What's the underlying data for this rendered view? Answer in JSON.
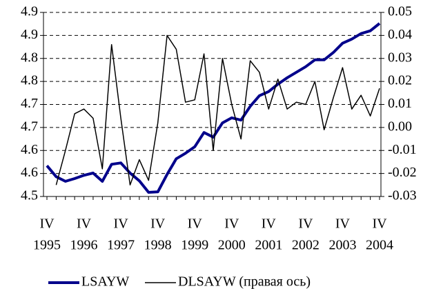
{
  "chart_data": {
    "type": "line",
    "categories": [
      [
        "IV",
        "1995"
      ],
      null,
      null,
      null,
      [
        "IV",
        "1996"
      ],
      null,
      null,
      null,
      [
        "IV",
        "1997"
      ],
      null,
      null,
      null,
      [
        "IV",
        "1998"
      ],
      null,
      null,
      null,
      [
        "IV",
        "1999"
      ],
      null,
      null,
      null,
      [
        "IV",
        "2000"
      ],
      null,
      null,
      null,
      [
        "IV",
        "2001"
      ],
      null,
      null,
      null,
      [
        "IV",
        "2002"
      ],
      null,
      null,
      null,
      [
        "IV",
        "2003"
      ],
      null,
      null,
      null,
      [
        "IV",
        "2004"
      ]
    ],
    "series": [
      {
        "name": "LSAYW",
        "color": "#00008b",
        "values": [
          4.567,
          4.543,
          4.533,
          4.539,
          4.546,
          4.551,
          4.533,
          4.57,
          4.573,
          4.551,
          4.534,
          4.509,
          4.51,
          4.548,
          4.582,
          4.594,
          4.608,
          4.639,
          4.629,
          4.66,
          4.671,
          4.666,
          4.696,
          4.719,
          4.728,
          4.744,
          4.758,
          4.77,
          4.782,
          4.797,
          4.797,
          4.813,
          4.833,
          4.842,
          4.854,
          4.86,
          4.876
        ]
      },
      {
        "name": "DLSAYW (правая ось)",
        "color": "#000000",
        "axis": "y2",
        "values": [
          null,
          -0.025,
          -0.01,
          0.006,
          0.008,
          0.004,
          -0.018,
          0.036,
          0.004,
          -0.025,
          -0.014,
          -0.023,
          0.002,
          0.04,
          0.034,
          0.011,
          0.012,
          0.032,
          -0.01,
          0.03,
          0.01,
          -0.005,
          0.029,
          0.024,
          0.008,
          0.021,
          0.008,
          0.011,
          0.01,
          0.02,
          -0.001,
          0.013,
          0.026,
          0.008,
          0.014,
          0.005,
          0.017
        ]
      }
    ],
    "ylim": [
      4.5,
      4.9
    ],
    "yticks": [
      {
        "value": 4.5,
        "label": "4.5"
      },
      {
        "value": 4.55,
        "label": "4.6"
      },
      {
        "value": 4.6,
        "label": "4.6"
      },
      {
        "value": 4.65,
        "label": "4.7"
      },
      {
        "value": 4.7,
        "label": "4.7"
      },
      {
        "value": 4.75,
        "label": "4.8"
      },
      {
        "value": 4.8,
        "label": "4.8"
      },
      {
        "value": 4.85,
        "label": "4.9"
      },
      {
        "value": 4.9,
        "label": "4.9"
      }
    ],
    "y2lim": [
      -0.03,
      0.05
    ],
    "y2ticks": [
      -0.03,
      -0.02,
      -0.01,
      {
        "value": 0,
        "label": "0.00"
      },
      0.01,
      0.02,
      0.03,
      0.04,
      0.05
    ],
    "grid": true,
    "legend": "bottom"
  }
}
